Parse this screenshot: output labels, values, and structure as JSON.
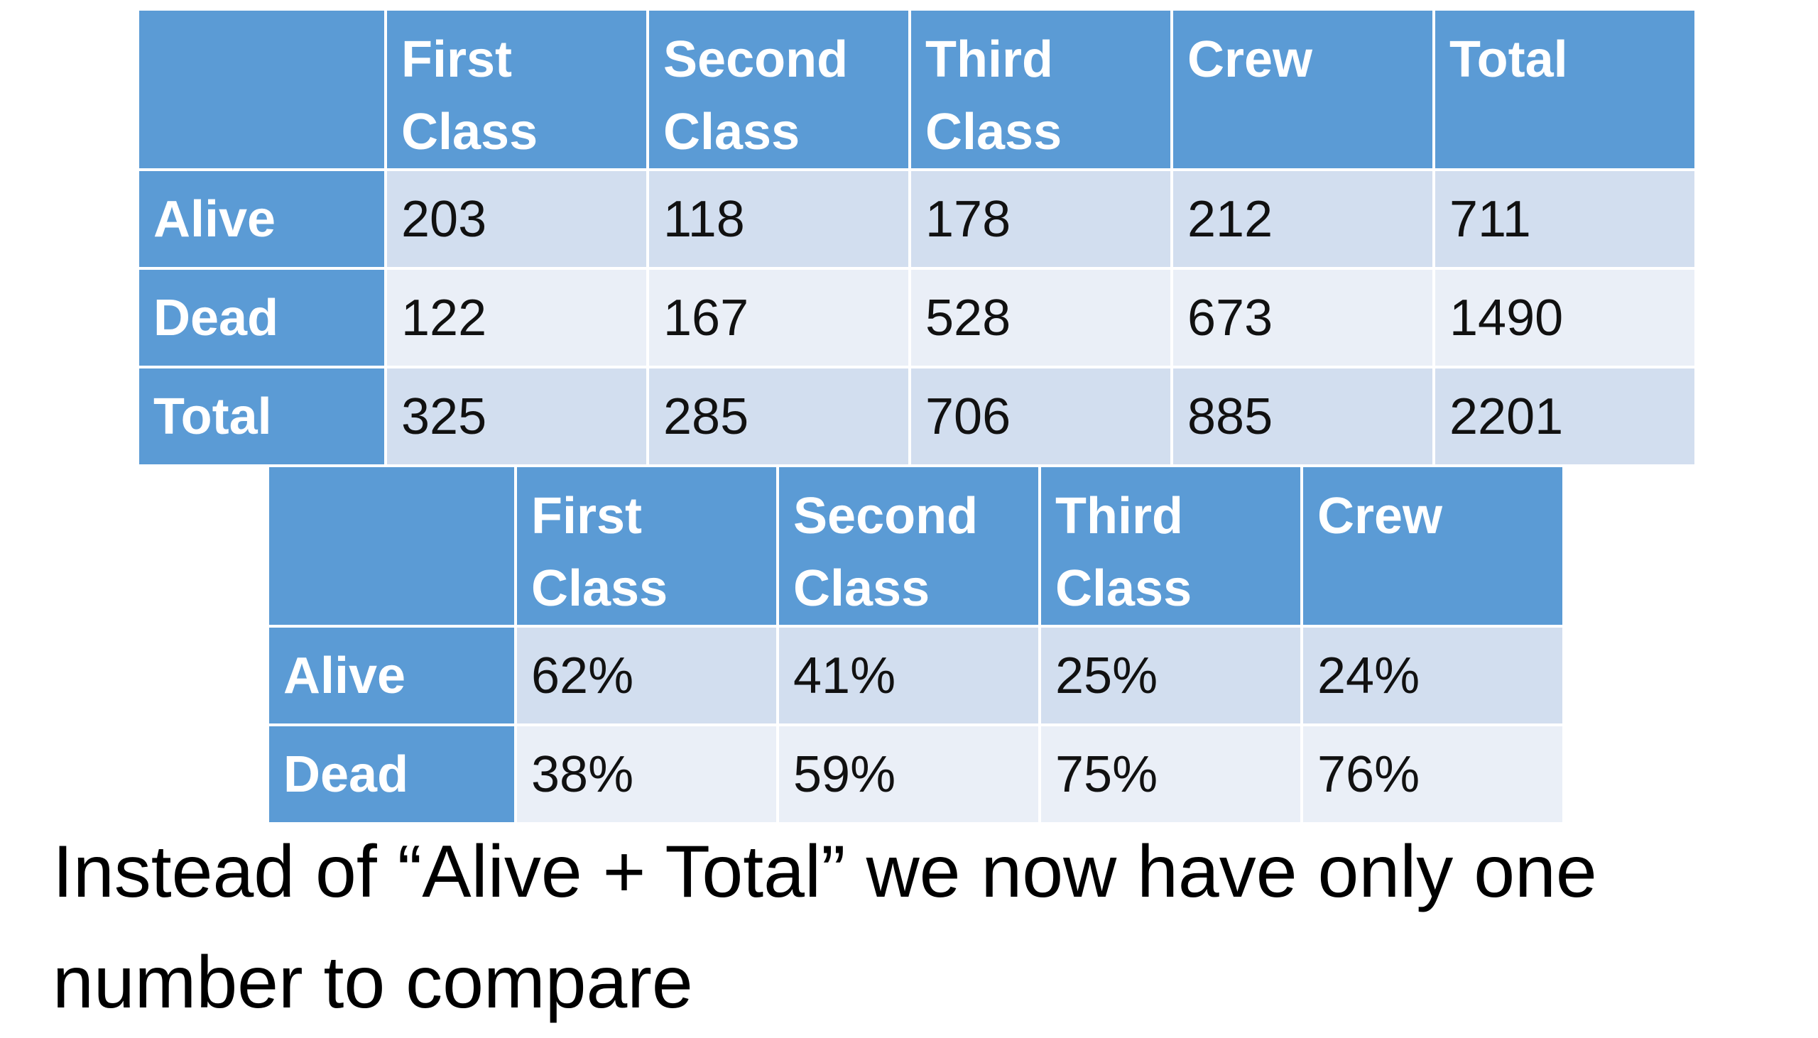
{
  "table1": {
    "header": [
      "First Class",
      "Second Class",
      "Third Class",
      "Crew",
      "Total"
    ],
    "rows": [
      {
        "label": "Alive",
        "cells": [
          "203",
          "118",
          "178",
          "212",
          "711"
        ]
      },
      {
        "label": "Dead",
        "cells": [
          "122",
          "167",
          "528",
          "673",
          "1490"
        ]
      },
      {
        "label": "Total",
        "cells": [
          "325",
          "285",
          "706",
          "885",
          "2201"
        ]
      }
    ]
  },
  "table2": {
    "header": [
      "First Class",
      "Second Class",
      "Third Class",
      "Crew"
    ],
    "rows": [
      {
        "label": "Alive",
        "cells": [
          "62%",
          "41%",
          "25%",
          "24%"
        ]
      },
      {
        "label": "Dead",
        "cells": [
          "38%",
          "59%",
          "75%",
          "76%"
        ]
      }
    ]
  },
  "caption": "Instead of “Alive + Total” we now have only one number to compare"
}
